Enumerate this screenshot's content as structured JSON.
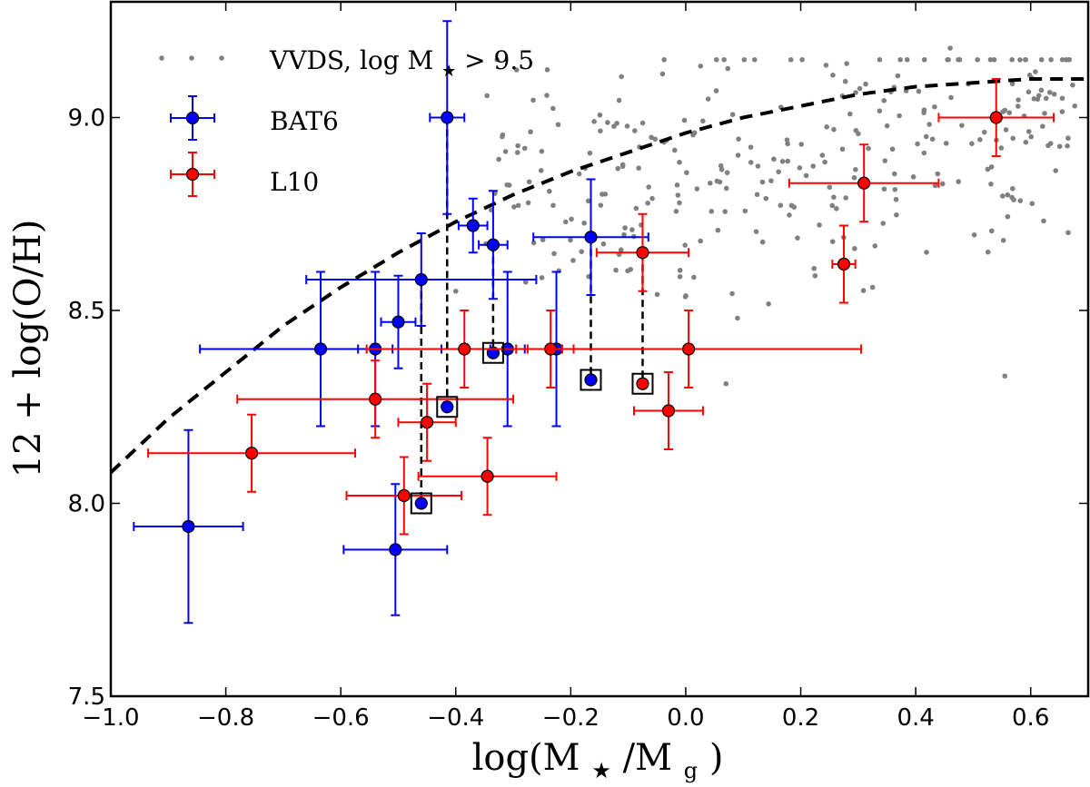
{
  "chart_data": {
    "type": "scatter",
    "xlabel_main": "log(M",
    "xlabel_star": "★",
    "xlabel_tail": "/M",
    "xlabel_sub": "g",
    "xlabel_close": ")",
    "ylabel": "12 + log(O/H)",
    "xlim": [
      -1.0,
      0.7
    ],
    "ylim": [
      7.5,
      9.3
    ],
    "xticks": [
      -1.0,
      -0.8,
      -0.6,
      -0.4,
      -0.2,
      0.0,
      0.2,
      0.4,
      0.6
    ],
    "xtick_labels": [
      "−1.0",
      "−0.8",
      "−0.6",
      "−0.4",
      "−0.2",
      "0.0",
      "0.2",
      "0.4",
      "0.6"
    ],
    "yticks": [
      7.5,
      8.0,
      8.5,
      9.0
    ],
    "ytick_labels": [
      "7.5",
      "8.0",
      "8.5",
      "9.0"
    ],
    "colors": {
      "bat6": "#0000ff",
      "l10": "#ff0000",
      "vvds": "#808080",
      "fit": "#000000"
    },
    "legend": {
      "vvds_label": "VVDS, log M",
      "vvds_label_star": "★",
      "vvds_label_tail": " > 9.5",
      "bat6_label": "BAT6",
      "l10_label": "L10"
    },
    "fit_curve": [
      {
        "x": -1.0,
        "y": 8.08
      },
      {
        "x": -0.9,
        "y": 8.22
      },
      {
        "x": -0.8,
        "y": 8.34
      },
      {
        "x": -0.7,
        "y": 8.46
      },
      {
        "x": -0.6,
        "y": 8.56
      },
      {
        "x": -0.5,
        "y": 8.65
      },
      {
        "x": -0.4,
        "y": 8.73
      },
      {
        "x": -0.3,
        "y": 8.8
      },
      {
        "x": -0.2,
        "y": 8.86
      },
      {
        "x": -0.1,
        "y": 8.91
      },
      {
        "x": 0.0,
        "y": 8.96
      },
      {
        "x": 0.1,
        "y": 9.0
      },
      {
        "x": 0.2,
        "y": 9.03
      },
      {
        "x": 0.3,
        "y": 9.06
      },
      {
        "x": 0.4,
        "y": 9.08
      },
      {
        "x": 0.5,
        "y": 9.09
      },
      {
        "x": 0.6,
        "y": 9.1
      },
      {
        "x": 0.7,
        "y": 9.1
      }
    ],
    "bat6": [
      {
        "x": -0.865,
        "y": 7.94,
        "xerr": 0.095,
        "yerr": 0.25
      },
      {
        "x": -0.505,
        "y": 7.88,
        "xerr": 0.09,
        "yerr": 0.17
      },
      {
        "x": -0.46,
        "y": 8.0,
        "xerr": 0,
        "yerr": 0
      },
      {
        "x": -0.635,
        "y": 8.4,
        "xerr": 0.21,
        "yerr": 0.2
      },
      {
        "x": -0.54,
        "y": 8.4,
        "xerr": 0.03,
        "yerr": 0.2
      },
      {
        "x": -0.5,
        "y": 8.47,
        "xerr": 0.03,
        "yerr": 0.12
      },
      {
        "x": -0.46,
        "y": 8.58,
        "xerr": 0.2,
        "yerr": 0.12
      },
      {
        "x": -0.415,
        "y": 9.0,
        "xerr": 0.03,
        "yerr": 0.25
      },
      {
        "x": -0.415,
        "y": 8.25,
        "xerr": 0,
        "yerr": 0
      },
      {
        "x": -0.37,
        "y": 8.72,
        "xerr": 0.025,
        "yerr": 0.07
      },
      {
        "x": -0.335,
        "y": 8.67,
        "xerr": 0.025,
        "yerr": 0.14
      },
      {
        "x": -0.335,
        "y": 8.39,
        "xerr": 0,
        "yerr": 0
      },
      {
        "x": -0.31,
        "y": 8.4,
        "xerr": 0.03,
        "yerr": 0.2
      },
      {
        "x": -0.225,
        "y": 8.4,
        "xerr": 0.01,
        "yerr": 0.2
      },
      {
        "x": -0.165,
        "y": 8.69,
        "xerr": 0.1,
        "yerr": 0.15
      },
      {
        "x": -0.165,
        "y": 8.32,
        "xerr": 0,
        "yerr": 0
      }
    ],
    "l10": [
      {
        "x": -0.755,
        "y": 8.13,
        "xerr": 0.18,
        "yerr": 0.1
      },
      {
        "x": -0.54,
        "y": 8.27,
        "xerr": 0.24,
        "yerr": 0.1
      },
      {
        "x": -0.49,
        "y": 8.02,
        "xerr": 0.1,
        "yerr": 0.1
      },
      {
        "x": -0.45,
        "y": 8.21,
        "xerr": 0.05,
        "yerr": 0.1
      },
      {
        "x": -0.385,
        "y": 8.4,
        "xerr": 0.17,
        "yerr": 0.1
      },
      {
        "x": -0.345,
        "y": 8.07,
        "xerr": 0.12,
        "yerr": 0.1
      },
      {
        "x": -0.235,
        "y": 8.4,
        "xerr": 0.04,
        "yerr": 0.1
      },
      {
        "x": -0.075,
        "y": 8.65,
        "xerr": 0.08,
        "yerr": 0.1
      },
      {
        "x": -0.075,
        "y": 8.31,
        "xerr": 0,
        "yerr": 0
      },
      {
        "x": -0.03,
        "y": 8.24,
        "xerr": 0.06,
        "yerr": 0.1
      },
      {
        "x": 0.005,
        "y": 8.4,
        "xerr": 0.3,
        "yerr": 0.1
      },
      {
        "x": 0.275,
        "y": 8.62,
        "xerr": 0.02,
        "yerr": 0.1
      },
      {
        "x": 0.31,
        "y": 8.83,
        "xerr": 0.13,
        "yerr": 0.1
      },
      {
        "x": 0.54,
        "y": 9.0,
        "xerr": 0.1,
        "yerr": 0.1
      }
    ],
    "boxed_points": [
      {
        "x": -0.46,
        "y": 8.0
      },
      {
        "x": -0.415,
        "y": 8.25
      },
      {
        "x": -0.335,
        "y": 8.39
      },
      {
        "x": -0.165,
        "y": 8.32
      },
      {
        "x": -0.075,
        "y": 8.31
      }
    ],
    "drop_lines": [
      {
        "x": -0.46,
        "y1": 8.58,
        "y2": 8.0
      },
      {
        "x": -0.415,
        "y1": 9.0,
        "y2": 8.25
      },
      {
        "x": -0.335,
        "y1": 8.67,
        "y2": 8.39
      },
      {
        "x": -0.165,
        "y1": 8.69,
        "y2": 8.32
      },
      {
        "x": -0.075,
        "y1": 8.65,
        "y2": 8.31
      }
    ],
    "vvds": {
      "count": 300,
      "x_range": [
        -0.35,
        0.68
      ],
      "y_range": [
        8.3,
        9.15
      ],
      "outliers": [
        {
          "x": 0.555,
          "y": 8.33
        },
        {
          "x": 0.46,
          "y": 9.18
        },
        {
          "x": 0.28,
          "y": 9.14
        },
        {
          "x": -0.4,
          "y": 8.55
        },
        {
          "x": 0.09,
          "y": 8.48
        },
        {
          "x": 0.225,
          "y": 8.59
        },
        {
          "x": 0.325,
          "y": 8.56
        },
        {
          "x": 0.07,
          "y": 8.31
        },
        {
          "x": 0.655,
          "y": 9.05
        }
      ]
    }
  }
}
